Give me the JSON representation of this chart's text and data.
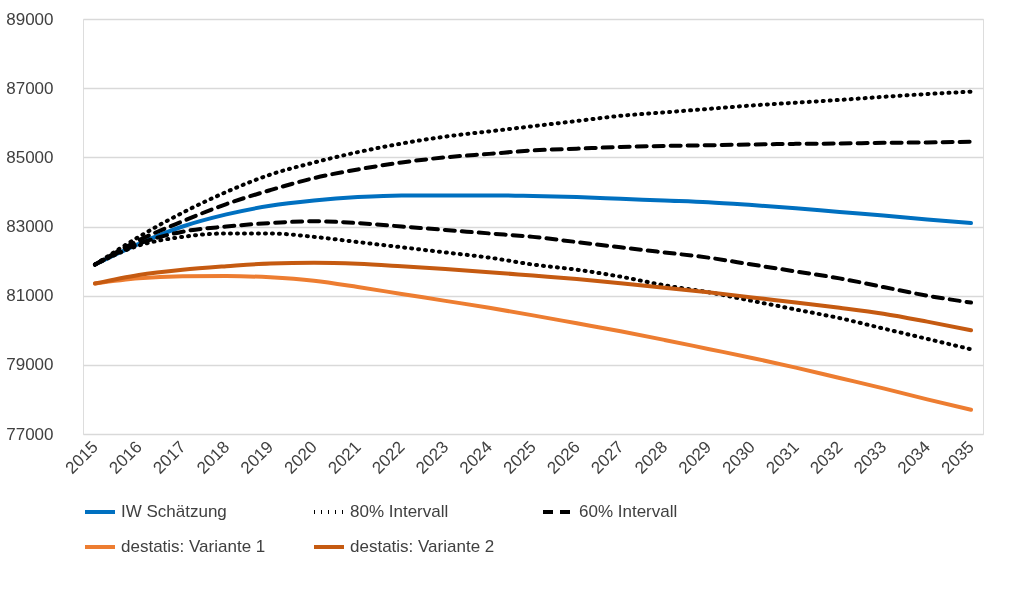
{
  "chart_data": {
    "type": "line",
    "categories": [
      "2015",
      "2016",
      "2017",
      "2018",
      "2019",
      "2020",
      "2021",
      "2022",
      "2023",
      "2024",
      "2025",
      "2026",
      "2027",
      "2028",
      "2029",
      "2030",
      "2031",
      "2032",
      "2033",
      "2034",
      "2035"
    ],
    "ylim": [
      77000,
      89000
    ],
    "yticks": [
      77000,
      79000,
      81000,
      83000,
      85000,
      87000,
      89000
    ],
    "grid": "y",
    "legend": "bottom",
    "series": [
      {
        "name": "IW Schätzung",
        "color": "#0070c0",
        "line_style": "solid",
        "values": [
          81900,
          82500,
          83000,
          83350,
          83600,
          83750,
          83850,
          83900,
          83900,
          83900,
          83880,
          83850,
          83800,
          83750,
          83700,
          83620,
          83530,
          83420,
          83320,
          83200,
          83100
        ]
      },
      {
        "name": "80% Intervall",
        "color": "#000000",
        "line_style": "dotted",
        "values": [
          81900,
          82700,
          83400,
          84000,
          84500,
          84850,
          85150,
          85400,
          85600,
          85750,
          85900,
          86050,
          86200,
          86300,
          86400,
          86500,
          86580,
          86660,
          86750,
          86830,
          86900
        ]
      },
      {
        "color": "#000000",
        "line_style": "dotted",
        "values": [
          81900,
          82450,
          82700,
          82800,
          82800,
          82700,
          82550,
          82400,
          82250,
          82100,
          81900,
          81750,
          81550,
          81300,
          81100,
          80850,
          80600,
          80350,
          80050,
          79750,
          79450
        ]
      },
      {
        "name": "60% Intervall",
        "color": "#000000",
        "line_style": "dashed",
        "values": [
          81900,
          82600,
          83150,
          83650,
          84050,
          84400,
          84650,
          84850,
          85000,
          85100,
          85200,
          85250,
          85300,
          85330,
          85350,
          85370,
          85390,
          85400,
          85420,
          85430,
          85450
        ]
      },
      {
        "color": "#000000",
        "line_style": "dashed",
        "values": [
          81900,
          82500,
          82850,
          83000,
          83100,
          83150,
          83100,
          83000,
          82900,
          82800,
          82700,
          82550,
          82400,
          82250,
          82100,
          81900,
          81700,
          81500,
          81250,
          81000,
          80800
        ]
      },
      {
        "name": "destatis: Variante 1",
        "color": "#ed7d31",
        "line_style": "solid",
        "values": [
          81350,
          81500,
          81560,
          81570,
          81530,
          81430,
          81250,
          81050,
          80850,
          80650,
          80430,
          80200,
          79970,
          79720,
          79460,
          79200,
          78920,
          78620,
          78320,
          78000,
          77700
        ]
      },
      {
        "name": "destatis: Variante 2",
        "color": "#c55a11",
        "line_style": "solid",
        "values": [
          81350,
          81600,
          81750,
          81850,
          81930,
          81950,
          81920,
          81850,
          81770,
          81680,
          81580,
          81480,
          81360,
          81230,
          81100,
          80950,
          80800,
          80650,
          80480,
          80250,
          80000
        ]
      }
    ]
  }
}
